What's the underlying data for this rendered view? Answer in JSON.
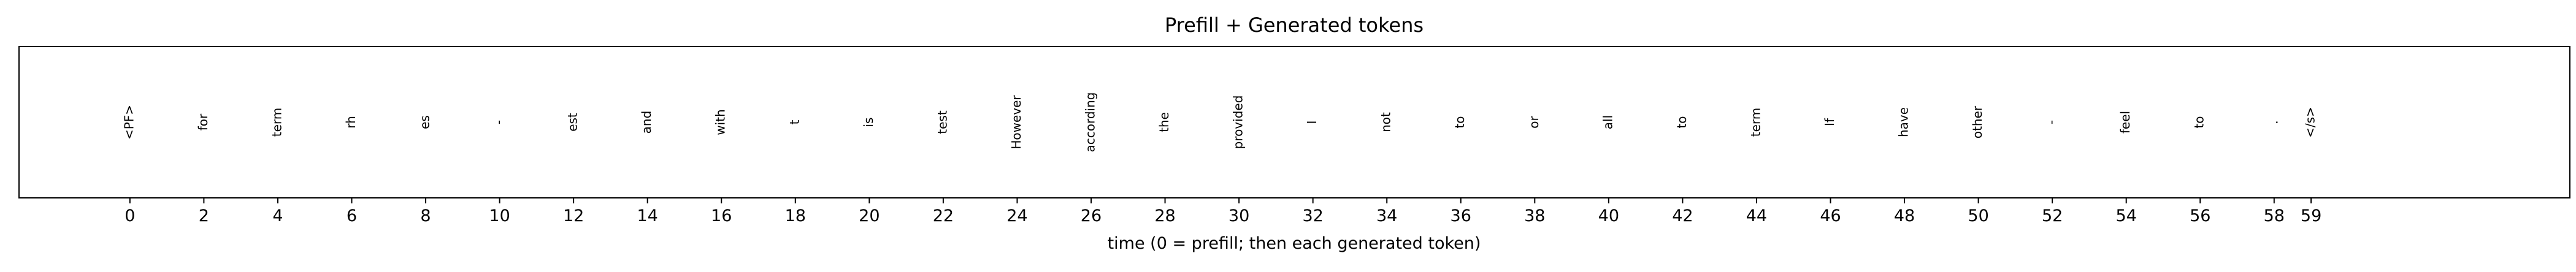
{
  "chart_data": {
    "type": "scatter",
    "title": "Prefill + Generated tokens",
    "xlabel": "time (0 = prefill; then each generated token)",
    "ylabel": "",
    "xlim": [
      -3,
      66
    ],
    "grid": false,
    "legend": "none",
    "xticks": [
      0,
      2,
      4,
      6,
      8,
      10,
      12,
      14,
      16,
      18,
      20,
      22,
      24,
      26,
      28,
      30,
      32,
      34,
      36,
      38,
      40,
      42,
      44,
      46,
      48,
      50,
      52,
      54,
      56,
      58,
      59
    ],
    "tokens": [
      {
        "x": 0,
        "label": "<PF>"
      },
      {
        "x": 2,
        "label": "for"
      },
      {
        "x": 4,
        "label": "term"
      },
      {
        "x": 6,
        "label": "rh"
      },
      {
        "x": 8,
        "label": "es"
      },
      {
        "x": 10,
        "label": "-"
      },
      {
        "x": 12,
        "label": "est"
      },
      {
        "x": 14,
        "label": "and"
      },
      {
        "x": 16,
        "label": "with"
      },
      {
        "x": 18,
        "label": "t"
      },
      {
        "x": 20,
        "label": "is"
      },
      {
        "x": 22,
        "label": "test"
      },
      {
        "x": 24,
        "label": "However"
      },
      {
        "x": 26,
        "label": "according"
      },
      {
        "x": 28,
        "label": "the"
      },
      {
        "x": 30,
        "label": "provided"
      },
      {
        "x": 32,
        "label": "I"
      },
      {
        "x": 34,
        "label": "not"
      },
      {
        "x": 36,
        "label": "to"
      },
      {
        "x": 38,
        "label": "or"
      },
      {
        "x": 40,
        "label": "all"
      },
      {
        "x": 42,
        "label": "to"
      },
      {
        "x": 44,
        "label": "term"
      },
      {
        "x": 46,
        "label": "If"
      },
      {
        "x": 48,
        "label": "have"
      },
      {
        "x": 50,
        "label": "other"
      },
      {
        "x": 52,
        "label": "-"
      },
      {
        "x": 54,
        "label": "feel"
      },
      {
        "x": 56,
        "label": "to"
      },
      {
        "x": 58,
        "label": "."
      },
      {
        "x": 59,
        "label": "</s>"
      }
    ]
  }
}
